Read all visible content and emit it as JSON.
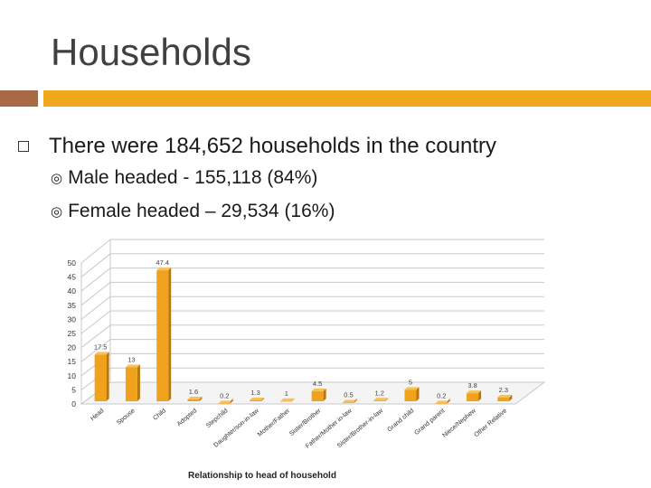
{
  "slide": {
    "title": "Households",
    "bullet": "There were 184,652 households in the country",
    "sub_bullets": [
      "Male headed - 155,118 (84%)",
      "Female headed – 29,534 (16%)"
    ],
    "accent_color": "#f2a81d",
    "accent_dark": "#a86a45"
  },
  "chart_data": {
    "type": "bar",
    "xlabel": "Relationship to head of household",
    "ylabel": "",
    "ylim": [
      0,
      50
    ],
    "yticks": [
      0,
      5,
      10,
      15,
      20,
      25,
      30,
      35,
      40,
      45,
      50
    ],
    "categories": [
      "Head",
      "Spouse",
      "Child",
      "Adopted",
      "Stepchild",
      "Daughter/son-in-law",
      "Mother/Father",
      "Sister/Brother",
      "Father/Mother in-law",
      "Sister/Brother-in-law",
      "Grand child",
      "Grand parent",
      "Niece/Nephew",
      "Other Relative"
    ],
    "values": [
      17.5,
      13,
      47.4,
      1.6,
      0.2,
      1.3,
      1,
      4.5,
      0.5,
      1.2,
      5,
      0.2,
      3.8,
      2.3
    ],
    "value_labels": [
      "17.5",
      "13",
      "47.4",
      "1.6",
      "0.2",
      "1.3",
      "1",
      "4.5",
      "0.5",
      "1.2",
      "5",
      "0.2",
      "3.8",
      "2.3"
    ],
    "bar_color": "#f0a21c",
    "grid": true
  }
}
